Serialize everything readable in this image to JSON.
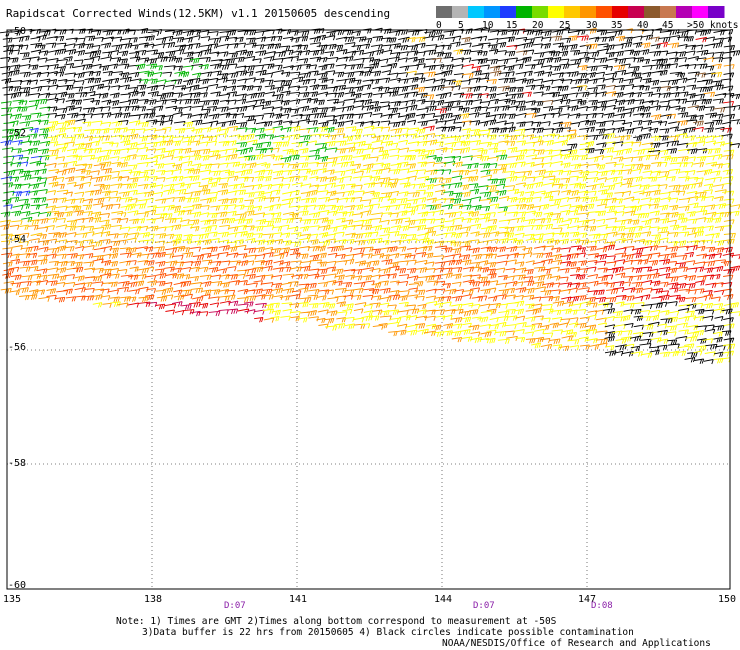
{
  "title": "Rapidscat Corrected Winds(12.5KM) v1.1 20150605 descending",
  "legend": {
    "colors": [
      "#6e6e6e",
      "#b4b4b4",
      "#00c8ff",
      "#0096ff",
      "#1e3cff",
      "#00b400",
      "#78dc00",
      "#ffff00",
      "#ffc800",
      "#ff9600",
      "#ff5000",
      "#e60000",
      "#c80050",
      "#8c5a2d",
      "#c87850",
      "#b400b4",
      "#ff00ff",
      "#7800c8"
    ],
    "labels": [
      "0",
      "5",
      "10",
      "15",
      "20",
      "25",
      "30",
      "35",
      "40",
      "45",
      ">50 knots"
    ]
  },
  "lon_labels": [
    "135",
    "138",
    "141",
    "144",
    "147",
    "150"
  ],
  "lat_labels": [
    "-50",
    "-52",
    "-54",
    "-56",
    "-58",
    "-60"
  ],
  "time_labels": [
    "D:07",
    "D:07",
    "D:08"
  ],
  "notes": {
    "line1": "Note: 1) Times are GMT 2)Times along bottom correspond to measurement at -50S",
    "line2": "3)Data buffer is 22 hrs from 20150605 4) Black circles indicate possible contamination",
    "line3": "NOAA/NESDIS/Office of Research and Applications"
  }
}
